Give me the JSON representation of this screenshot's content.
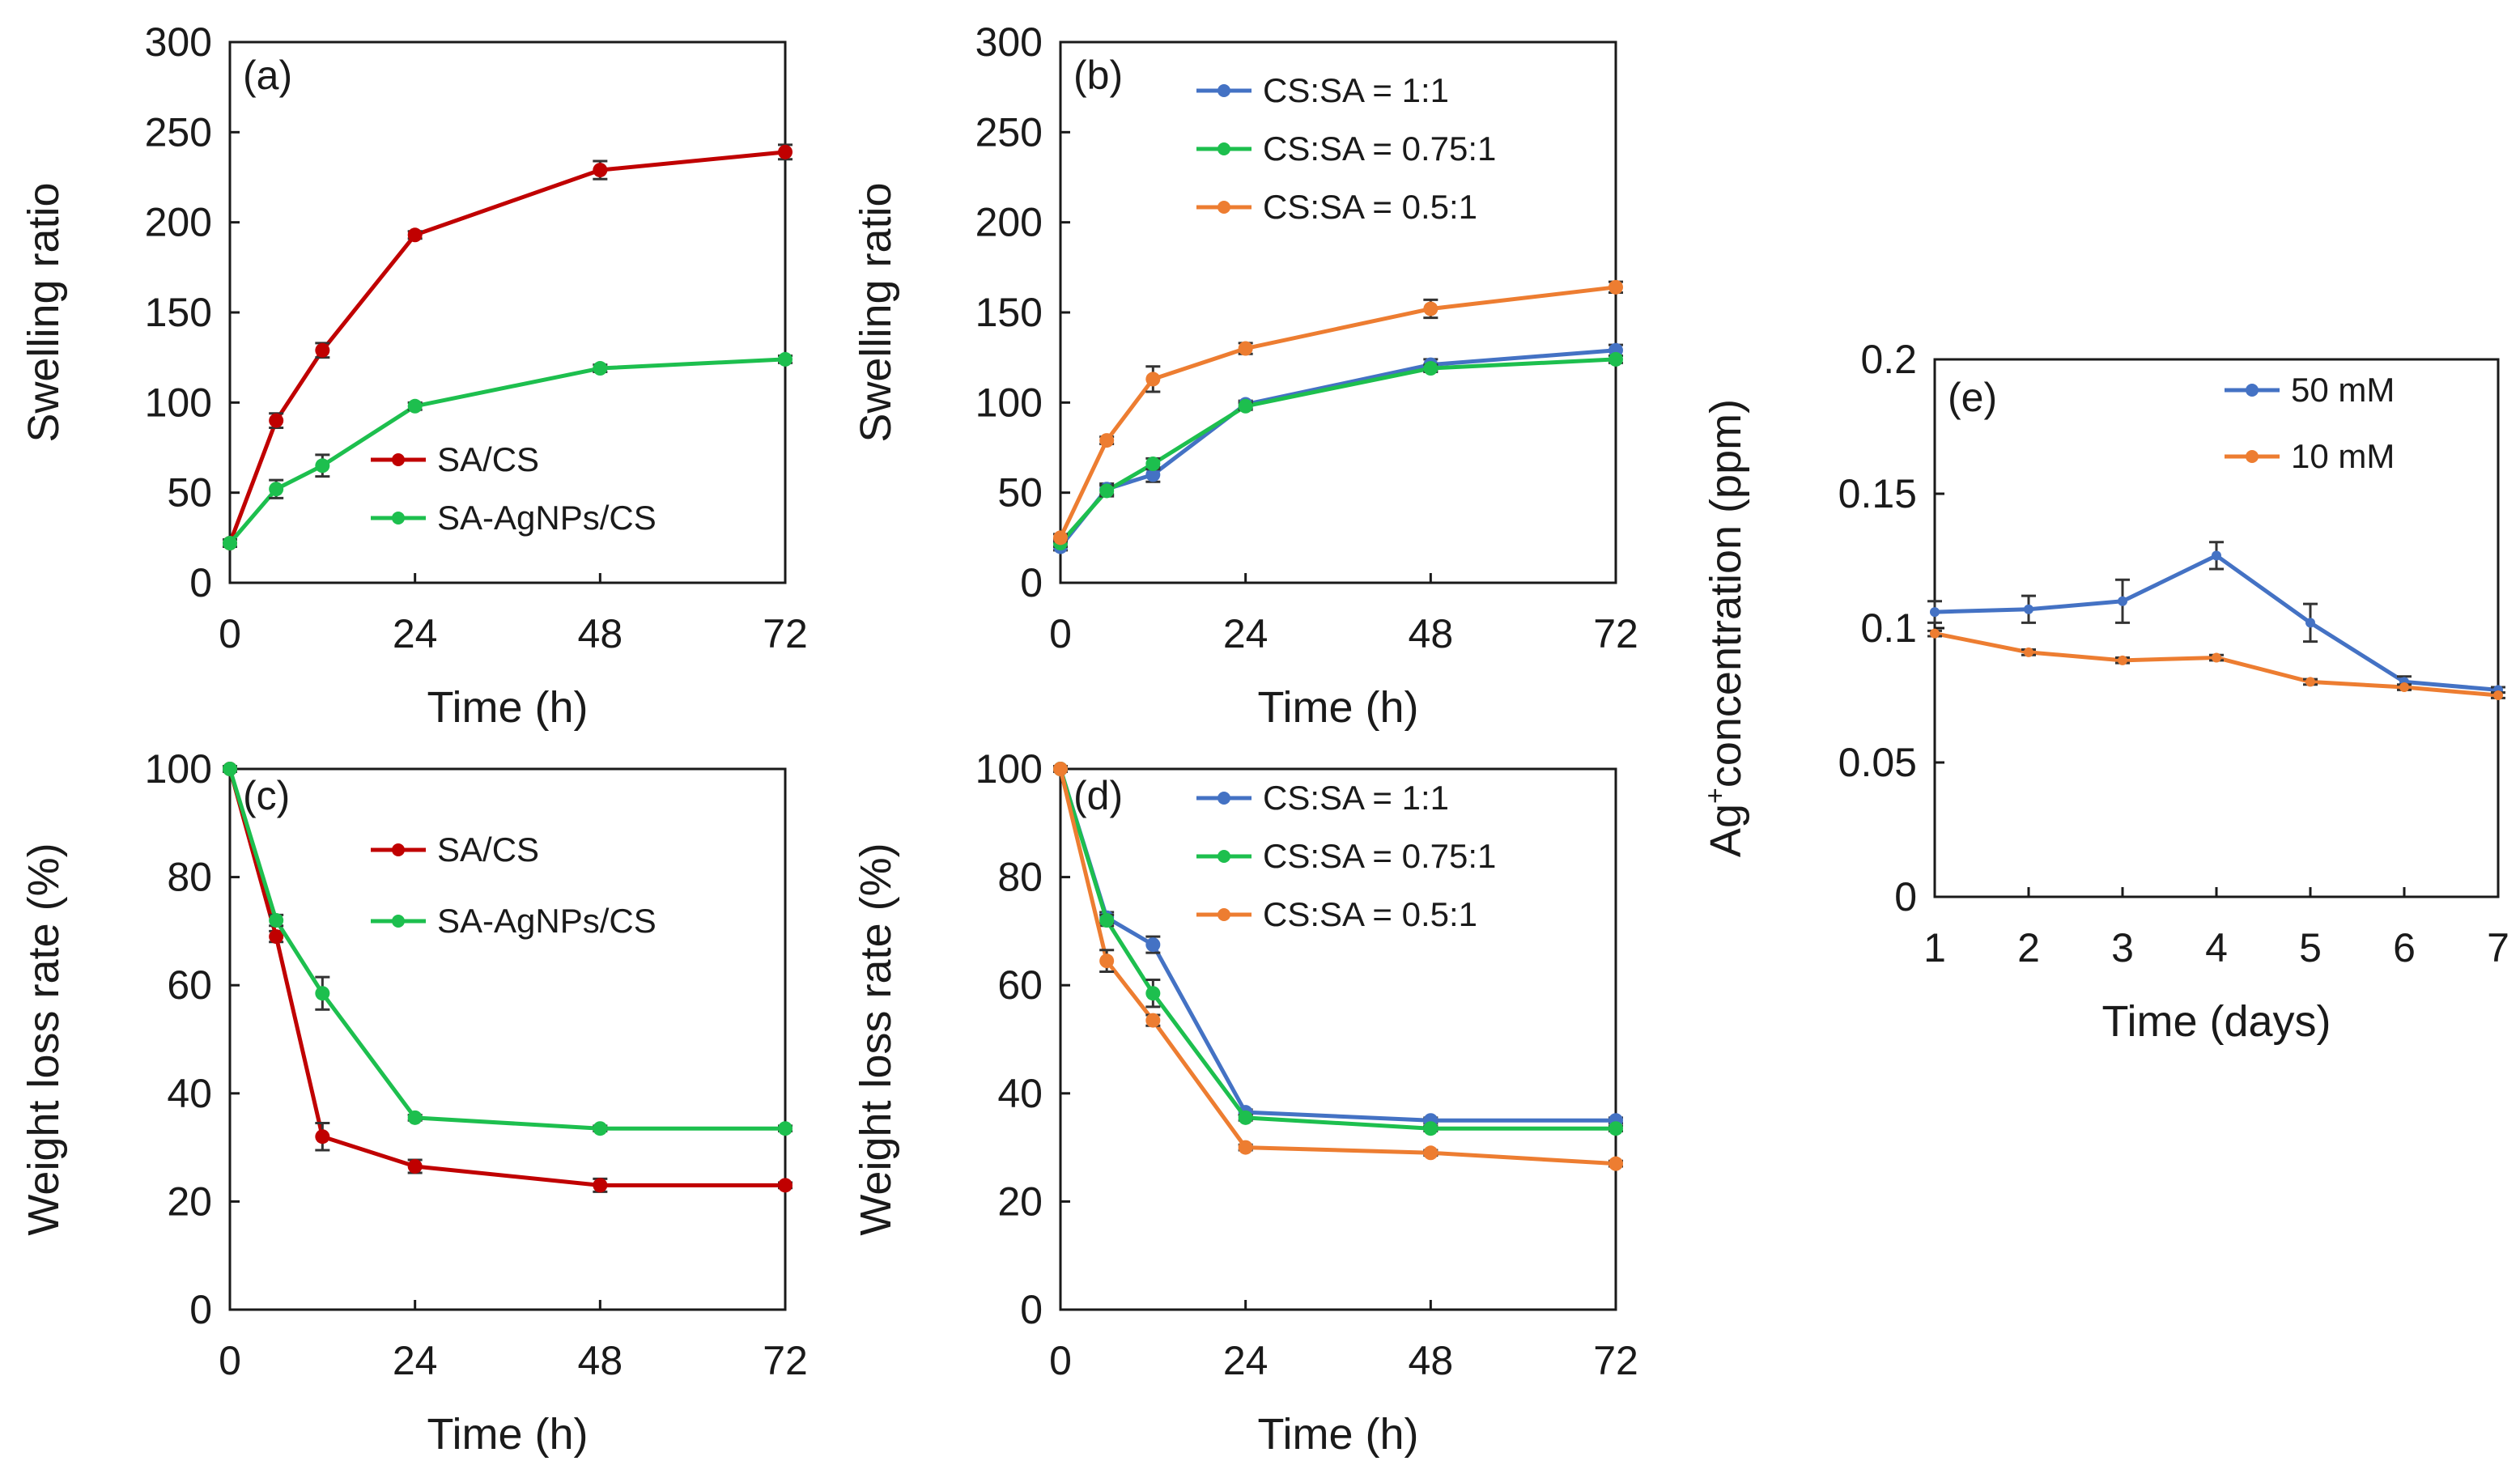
{
  "chart_data": [
    {
      "id": "a",
      "type": "line",
      "panel_label": "(a)",
      "xlabel": "Time (h)",
      "ylabel": "Swelling ratio",
      "xlim": [
        0,
        72
      ],
      "ylim": [
        0,
        300
      ],
      "xticks": [
        0,
        24,
        48,
        72
      ],
      "yticks": [
        0,
        50,
        100,
        150,
        200,
        250,
        300
      ],
      "x": [
        0,
        6,
        12,
        24,
        48,
        72
      ],
      "legend_position": "bottom-right",
      "series": [
        {
          "name": "SA/CS",
          "color": "#c00000",
          "values": [
            22,
            90,
            129,
            193,
            229,
            239
          ],
          "errors": [
            2,
            4,
            4,
            2,
            5,
            4
          ]
        },
        {
          "name": "SA-AgNPs/CS",
          "color": "#1dbf4e",
          "values": [
            22,
            52,
            65,
            98,
            119,
            124
          ],
          "errors": [
            2,
            5,
            6,
            2,
            2,
            2
          ]
        }
      ]
    },
    {
      "id": "b",
      "type": "line",
      "panel_label": "(b)",
      "xlabel": "Time (h)",
      "ylabel": "Swelling ratio",
      "xlim": [
        0,
        72
      ],
      "ylim": [
        0,
        300
      ],
      "xticks": [
        0,
        24,
        48,
        72
      ],
      "yticks": [
        0,
        50,
        100,
        150,
        200,
        250,
        300
      ],
      "x": [
        0,
        6,
        12,
        24,
        48,
        72
      ],
      "legend_position": "top-right",
      "series": [
        {
          "name": "CS:SA = 1:1",
          "color": "#4472c4",
          "values": [
            20,
            52,
            60,
            99,
            121,
            129
          ],
          "errors": [
            2,
            3,
            4,
            2,
            3,
            3
          ]
        },
        {
          "name": "CS:SA = 0.75:1",
          "color": "#1dbf4e",
          "values": [
            22,
            51,
            66,
            98,
            119,
            124
          ],
          "errors": [
            2,
            3,
            3,
            2,
            2,
            2
          ]
        },
        {
          "name": "CS:SA = 0.5:1",
          "color": "#ed7d31",
          "values": [
            25,
            79,
            113,
            130,
            152,
            164
          ],
          "errors": [
            2,
            2,
            7,
            3,
            5,
            3
          ]
        }
      ]
    },
    {
      "id": "c",
      "type": "line",
      "panel_label": "(c)",
      "xlabel": "Time (h)",
      "ylabel": "Weight loss rate (%)",
      "xlim": [
        0,
        72
      ],
      "ylim": [
        0,
        100
      ],
      "xticks": [
        0,
        24,
        48,
        72
      ],
      "yticks": [
        0,
        20,
        40,
        60,
        80,
        100
      ],
      "x": [
        0,
        6,
        12,
        24,
        48,
        72
      ],
      "legend_position": "top-right",
      "series": [
        {
          "name": "SA/CS",
          "color": "#c00000",
          "values": [
            100,
            69,
            32,
            26.5,
            23,
            23
          ],
          "errors": [
            0.5,
            1,
            2.5,
            1.2,
            1.2,
            0.5
          ]
        },
        {
          "name": "SA-AgNPs/CS",
          "color": "#1dbf4e",
          "values": [
            100,
            72,
            58.5,
            35.5,
            33.5,
            33.5
          ],
          "errors": [
            0.5,
            1,
            3,
            0.5,
            0.5,
            0.5
          ]
        }
      ]
    },
    {
      "id": "d",
      "type": "line",
      "panel_label": "(d)",
      "xlabel": "Time (h)",
      "ylabel": "Weight loss rate (%)",
      "xlim": [
        0,
        72
      ],
      "ylim": [
        0,
        100
      ],
      "xticks": [
        0,
        24,
        48,
        72
      ],
      "yticks": [
        0,
        20,
        40,
        60,
        80,
        100
      ],
      "x": [
        0,
        6,
        12,
        24,
        48,
        72
      ],
      "legend_position": "top-right",
      "series": [
        {
          "name": "CS:SA = 1:1",
          "color": "#4472c4",
          "values": [
            100,
            72.5,
            67.5,
            36.5,
            35,
            35
          ],
          "errors": [
            0.5,
            1,
            1.5,
            0.5,
            0.5,
            0.5
          ]
        },
        {
          "name": "CS:SA = 0.75:1",
          "color": "#1dbf4e",
          "values": [
            100,
            72,
            58.5,
            35.5,
            33.5,
            33.5
          ],
          "errors": [
            0.5,
            1,
            2.5,
            0.5,
            0.5,
            0.5
          ]
        },
        {
          "name": "CS:SA = 0.5:1",
          "color": "#ed7d31",
          "values": [
            100,
            64.5,
            53.5,
            30,
            29,
            27
          ],
          "errors": [
            0.5,
            2,
            1,
            0.5,
            0.5,
            0.5
          ]
        }
      ]
    },
    {
      "id": "e",
      "type": "line",
      "panel_label": "(e)",
      "xlabel": "Time (days)",
      "ylabel_prefix": "Ag",
      "ylabel_sup": "+",
      "ylabel_suffix": "concentration (ppm)",
      "xlim": [
        1,
        7
      ],
      "ylim": [
        0,
        0.2
      ],
      "xticks": [
        1,
        2,
        3,
        4,
        5,
        6,
        7
      ],
      "yticks": [
        0,
        0.05,
        0.1,
        0.15,
        0.2
      ],
      "x": [
        1,
        2,
        3,
        4,
        5,
        6,
        7
      ],
      "legend_position": "top-right",
      "series": [
        {
          "name": "50 mM",
          "color": "#4472c4",
          "values": [
            0.106,
            0.107,
            0.11,
            0.127,
            0.102,
            0.08,
            0.077
          ],
          "errors": [
            0.004,
            0.005,
            0.008,
            0.005,
            0.007,
            0.002,
            0.001
          ]
        },
        {
          "name": "10 mM",
          "color": "#ed7d31",
          "values": [
            0.098,
            0.091,
            0.088,
            0.089,
            0.08,
            0.078,
            0.075
          ],
          "errors": [
            0.001,
            0.001,
            0.001,
            0.001,
            0.001,
            0.001,
            0.001
          ]
        }
      ]
    }
  ]
}
